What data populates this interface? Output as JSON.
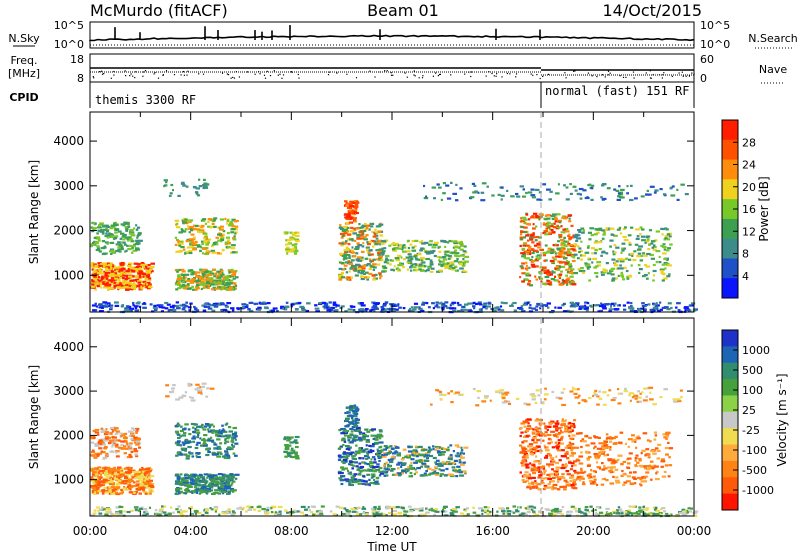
{
  "header": {
    "radar": "McMurdo (fitACF)",
    "beam": "Beam 01",
    "date": "14/Oct/2015"
  },
  "aux": {
    "nsky_label": "N.Sky",
    "nsearch_label": "N.Search",
    "nsky_ticks": [
      "10^5",
      "10^0"
    ],
    "nsearch_ticks": [
      "10^5",
      "10^0"
    ],
    "freq_label_1": "Freq.",
    "freq_label_2": "[MHz]",
    "freq_ticks": [
      "18",
      "8"
    ],
    "nave_label": "Nave",
    "nave_ticks": [
      "60",
      "0"
    ],
    "cpid_label": "CPID",
    "cpid_1": "themis 3300 RF",
    "cpid_2": "normal (fast) 151 RF"
  },
  "colors": {
    "power": [
      "#0a14ff",
      "#1e50c8",
      "#3c8c8c",
      "#3ca050",
      "#78c828",
      "#f0d21e",
      "#ff8c0a",
      "#ff5000",
      "#ff1e00"
    ],
    "velocity": [
      "#1e32c8",
      "#1e64b4",
      "#328c6e",
      "#46a03c",
      "#8cd246",
      "#c8c8c8",
      "#f0dc50",
      "#ffaa3c",
      "#ff8214",
      "#ff5a0a",
      "#ff1400"
    ]
  },
  "chart_data": [
    {
      "type": "heatmap",
      "name": "power",
      "xlabel": "",
      "ylabel": "Slant Range [km]",
      "x_range": [
        "00:00",
        "00:00"
      ],
      "ylim": [
        180,
        4650
      ],
      "yticks": [
        "1000",
        "2000",
        "3000",
        "4000"
      ],
      "colorbar_label": "Power [dB]",
      "colorbar_ticks": [
        "4",
        "8",
        "12",
        "16",
        "20",
        "24",
        "28"
      ],
      "colorbar_range": [
        0,
        32
      ]
    },
    {
      "type": "heatmap",
      "name": "velocity",
      "xlabel": "Time UT",
      "ylabel": "Slant Range [km]",
      "x_range": [
        "00:00",
        "00:00"
      ],
      "xticks": [
        "00:00",
        "04:00",
        "08:00",
        "12:00",
        "16:00",
        "20:00",
        "00:00"
      ],
      "ylim": [
        180,
        4650
      ],
      "yticks": [
        "1000",
        "2000",
        "3000",
        "4000"
      ],
      "colorbar_label": "Velocity [m s⁻¹]",
      "colorbar_ticks": [
        "1000",
        "500",
        "100",
        "25",
        "-25",
        "-100",
        "-500",
        "-1000"
      ]
    }
  ]
}
